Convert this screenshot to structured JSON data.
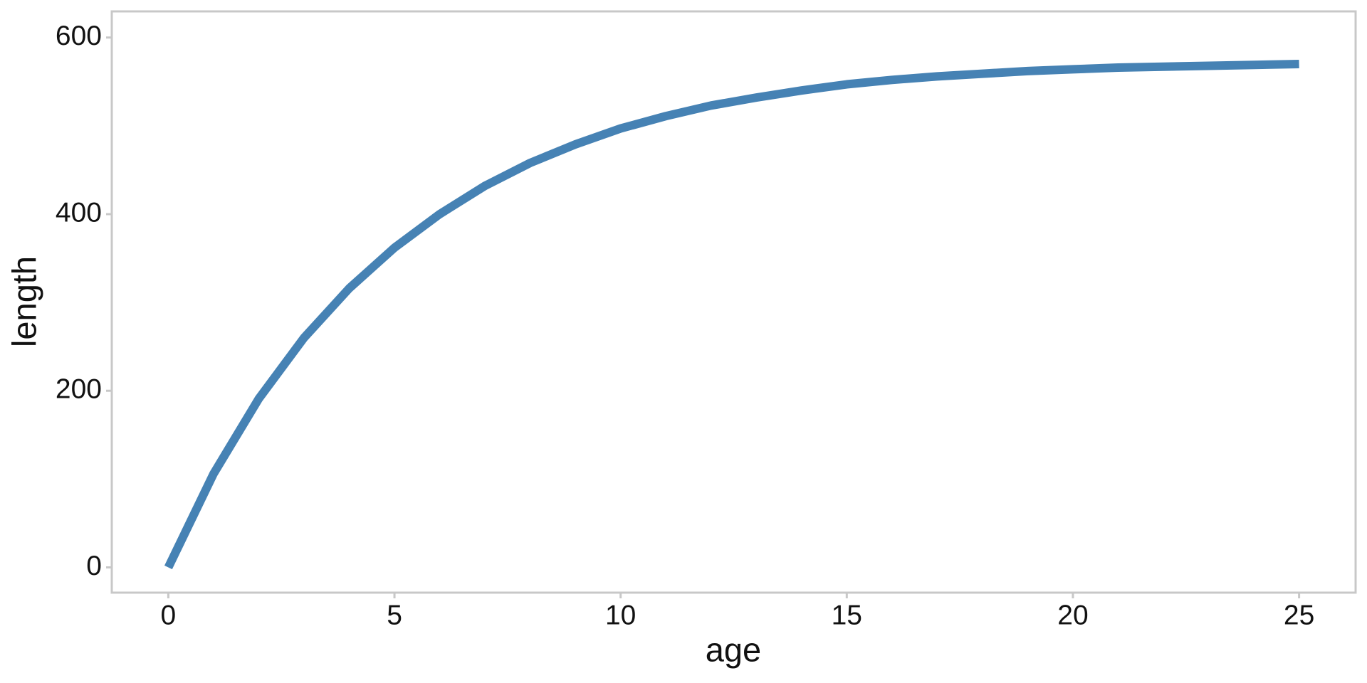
{
  "chart_data": {
    "type": "line",
    "x_label": "age",
    "y_label": "length",
    "x": [
      0,
      1,
      2,
      3,
      4,
      5,
      6,
      7,
      8,
      9,
      10,
      11,
      12,
      13,
      14,
      15,
      16,
      17,
      18,
      19,
      20,
      21,
      22,
      23,
      24,
      25
    ],
    "series": [
      {
        "color": "#4682b4",
        "values": [
          0,
          106,
          191,
          260,
          316,
          362,
          400,
          432,
          458,
          479,
          497,
          511,
          523,
          532,
          540,
          547,
          552,
          556,
          559,
          562,
          564,
          566,
          567,
          568,
          569,
          570
        ]
      }
    ],
    "xlim": [
      -1.25,
      26.25
    ],
    "xticks": [
      0,
      5,
      10,
      15,
      20,
      25
    ],
    "ylim": [
      -28.6,
      629.6
    ],
    "yticks": [
      0,
      200,
      400,
      600
    ]
  }
}
